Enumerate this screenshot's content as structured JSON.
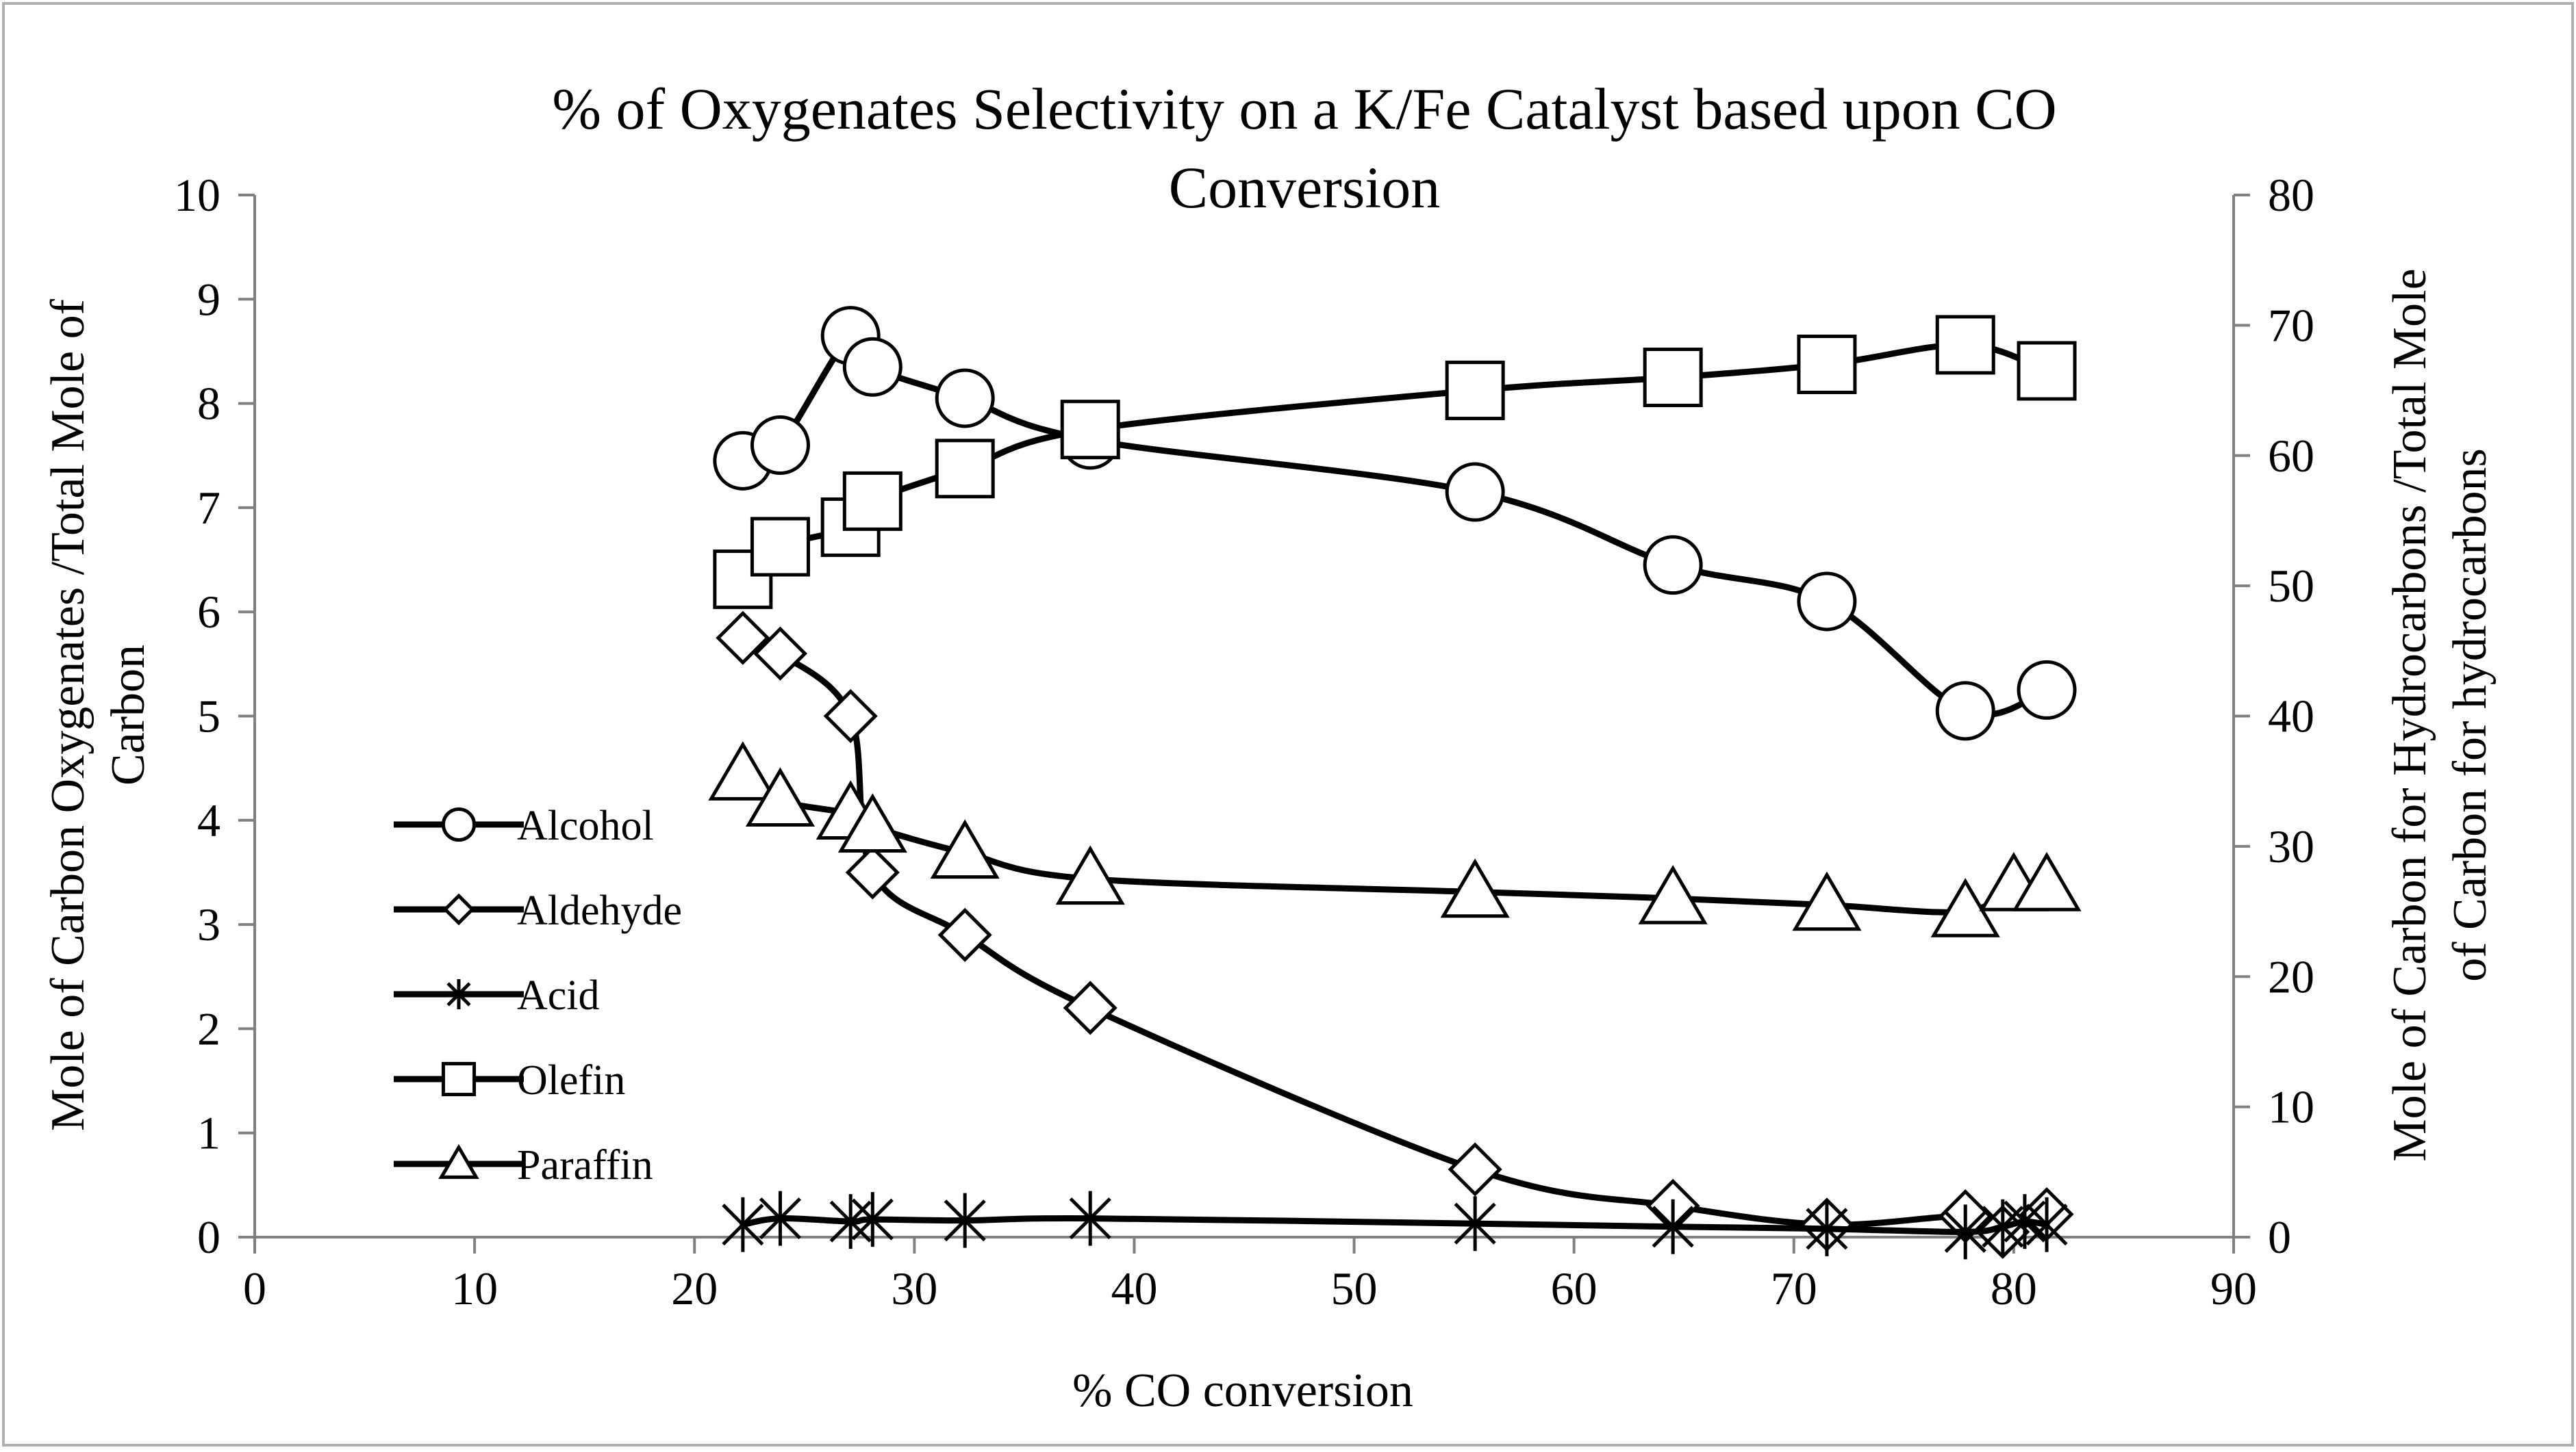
{
  "chart_data": {
    "type": "line",
    "title_lines": [
      "% of Oxygenates Selectivity on a K/Fe Catalyst based upon CO",
      "Conversion"
    ],
    "xlabel": "% CO conversion",
    "ylabel_left_lines": [
      "Mole of Carbon Oxygenates /Total Mole of",
      "Carbon"
    ],
    "ylabel_right_lines": [
      "Mole of Carbon for Hydrocarbons /Total Mole",
      "of Carbon for hydrocarbons"
    ],
    "xlim": [
      0,
      90
    ],
    "ylim_left": [
      0,
      10
    ],
    "ylim_right": [
      0,
      80
    ],
    "x_ticks": [
      0,
      10,
      20,
      30,
      40,
      50,
      60,
      70,
      80,
      90
    ],
    "y_left_ticks": [
      0,
      1,
      2,
      3,
      4,
      5,
      6,
      7,
      8,
      9,
      10
    ],
    "y_right_ticks": [
      0,
      10,
      20,
      30,
      40,
      50,
      60,
      70,
      80
    ],
    "legend_position": "left",
    "series": [
      {
        "name": "Alcohol",
        "axis": "left",
        "marker": "circle",
        "x": [
          22.2,
          23.9,
          27.1,
          28.1,
          32.3,
          38.0,
          55.5,
          64.5,
          71.5,
          77.8,
          81.5
        ],
        "y": [
          7.45,
          7.6,
          8.65,
          8.35,
          8.05,
          7.65,
          7.15,
          6.45,
          6.1,
          5.05,
          5.25
        ]
      },
      {
        "name": "Aldehyde",
        "axis": "left",
        "marker": "diamond",
        "x": [
          22.2,
          23.9,
          27.1,
          28.1,
          32.3,
          38.0,
          55.5,
          64.5,
          71.5,
          77.8,
          79.5,
          81.5
        ],
        "y": [
          5.75,
          5.6,
          5.0,
          3.5,
          2.9,
          2.2,
          0.65,
          0.3,
          0.12,
          0.2,
          0.05,
          0.22
        ]
      },
      {
        "name": "Acid",
        "axis": "left",
        "marker": "star",
        "x": [
          22.2,
          23.9,
          27.1,
          28.1,
          32.3,
          38.0,
          55.5,
          64.5,
          71.5,
          77.8,
          79.5,
          80.5,
          81.5
        ],
        "y": [
          0.12,
          0.18,
          0.15,
          0.17,
          0.16,
          0.18,
          0.13,
          0.1,
          0.08,
          0.05,
          0.1,
          0.15,
          0.12
        ]
      },
      {
        "name": "Olefin",
        "axis": "right",
        "marker": "square",
        "x": [
          22.2,
          23.9,
          27.1,
          28.1,
          32.3,
          38.0,
          55.5,
          64.5,
          71.5,
          77.8,
          81.5
        ],
        "y": [
          50.5,
          53,
          54.5,
          56.5,
          59,
          62,
          65,
          66,
          67,
          68.5,
          66.5
        ]
      },
      {
        "name": "Paraffin",
        "axis": "right",
        "marker": "triangle",
        "x": [
          22.2,
          23.9,
          27.1,
          28.1,
          32.3,
          38.0,
          55.5,
          64.5,
          71.5,
          77.8,
          80.0,
          81.5
        ],
        "y": [
          35.5,
          33.5,
          32.5,
          31.5,
          29.5,
          27.5,
          26.5,
          26,
          25.5,
          25,
          27,
          27
        ]
      }
    ]
  }
}
